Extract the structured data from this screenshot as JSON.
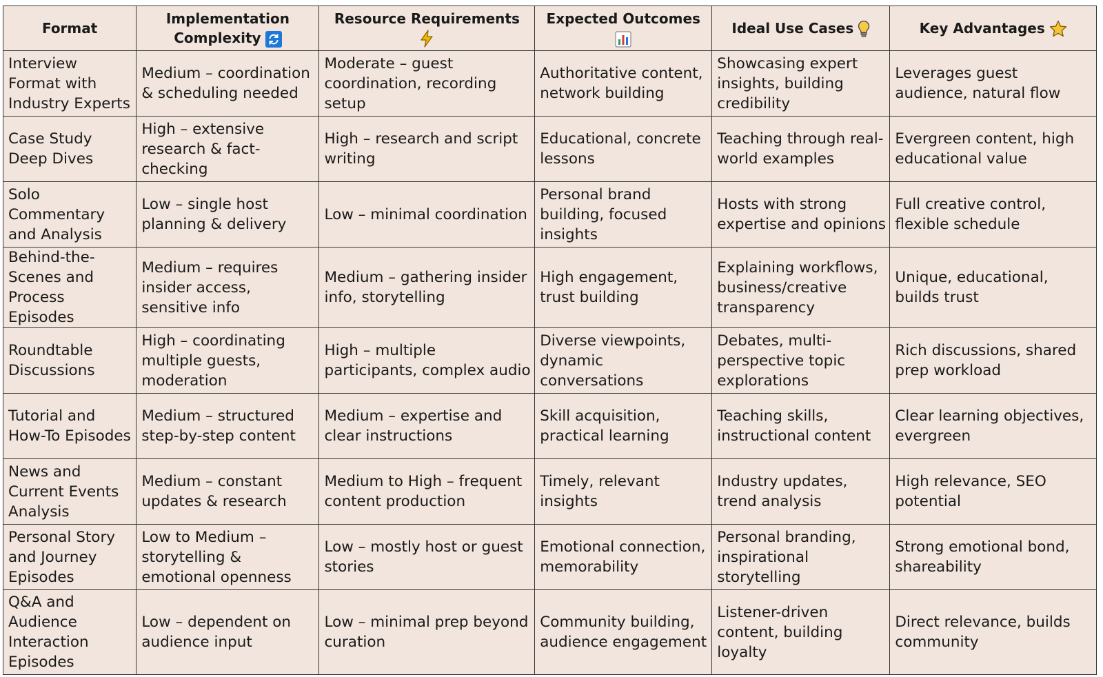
{
  "table": {
    "headers": [
      {
        "label": "Format",
        "icon": ""
      },
      {
        "label": "Implementation Complexity",
        "icon": "refresh-icon"
      },
      {
        "label": "Resource Requirements",
        "icon": "lightning-icon"
      },
      {
        "label": "Expected Outcomes",
        "icon": "bar-chart-icon"
      },
      {
        "label": "Ideal Use Cases",
        "icon": "lightbulb-icon"
      },
      {
        "label": "Key Advantages",
        "icon": "star-icon"
      }
    ],
    "rows": [
      [
        "Interview Format with Industry Experts",
        "Medium – coordination & scheduling needed",
        "Moderate – guest coordination, recording setup",
        "Authoritative content, network building",
        "Showcasing expert insights, building credibility",
        "Leverages guest audience, natural flow"
      ],
      [
        "Case Study Deep Dives",
        "High – extensive research & fact-checking",
        "High – research and script writing",
        "Educational, concrete lessons",
        "Teaching through real-world examples",
        "Evergreen content, high educational value"
      ],
      [
        "Solo Commentary and Analysis",
        "Low – single host planning & delivery",
        "Low – minimal coordination",
        "Personal brand building, focused insights",
        "Hosts with strong expertise and opinions",
        "Full creative control, flexible schedule"
      ],
      [
        "Behind-the-Scenes and Process Episodes",
        "Medium – requires insider access, sensitive info",
        "Medium – gathering insider info, storytelling",
        "High engagement, trust building",
        "Explaining workflows, business/creative transparency",
        "Unique, educational, builds trust"
      ],
      [
        "Roundtable Discussions",
        "High – coordinating multiple guests, moderation",
        "High – multiple participants, complex audio",
        "Diverse viewpoints, dynamic conversations",
        "Debates, multi-perspective topic explorations",
        "Rich discussions, shared prep workload"
      ],
      [
        "Tutorial and How-To Episodes",
        "Medium – structured step-by-step content",
        "Medium – expertise and clear instructions",
        "Skill acquisition, practical learning",
        "Teaching skills, instructional content",
        "Clear learning objectives, evergreen"
      ],
      [
        "News and Current Events Analysis",
        "Medium – constant updates & research",
        "Medium to High – frequent content production",
        "Timely, relevant insights",
        "Industry updates, trend analysis",
        "High relevance, SEO potential"
      ],
      [
        "Personal Story and Journey Episodes",
        "Low to Medium – storytelling & emotional openness",
        "Low – mostly host or guest stories",
        "Emotional connection, memorability",
        "Personal branding, inspirational storytelling",
        "Strong emotional bond, shareability"
      ],
      [
        "Q&A and Audience Interaction Episodes",
        "Low – dependent on audience input",
        "Low – minimal prep beyond curation",
        "Community building, audience engagement",
        "Listener-driven content, building loyalty",
        "Direct relevance, builds community"
      ]
    ]
  },
  "colors": {
    "cell_background": "#f2e5dd",
    "border": "#333333",
    "text": "#1a1a1a",
    "refresh_icon_bg": "#1e78d8",
    "lightning_icon": "#f2b705",
    "lightbulb_icon": "#f7c948",
    "star_icon": "#f6c435"
  }
}
